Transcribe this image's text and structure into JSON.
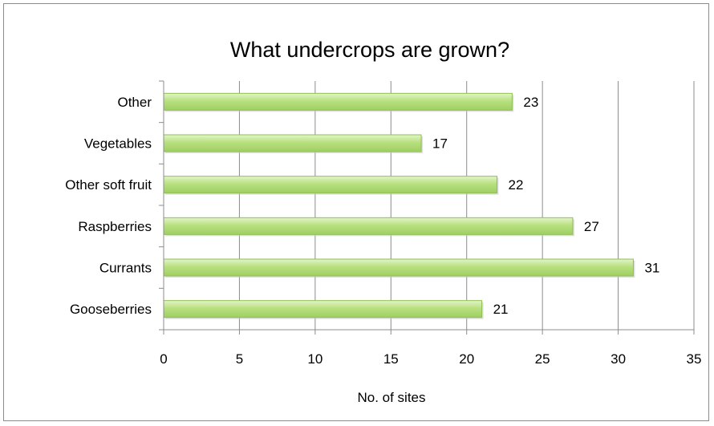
{
  "chart_data": {
    "type": "bar",
    "orientation": "horizontal",
    "title": "What undercrops are grown?",
    "xlabel": "No. of sites",
    "ylabel": "",
    "categories": [
      "Gooseberries",
      "Currants",
      "Raspberries",
      "Other soft fruit",
      "Vegetables",
      "Other"
    ],
    "values": [
      21,
      31,
      27,
      22,
      17,
      23
    ],
    "data_labels": [
      "21",
      "31",
      "27",
      "22",
      "17",
      "23"
    ],
    "xlim": [
      0,
      35
    ],
    "xticks": [
      "0",
      "5",
      "10",
      "15",
      "20",
      "25",
      "30",
      "35"
    ],
    "grid": "vertical",
    "legend": "none",
    "bar_color": "#b3dd7c",
    "bar_edge_color": "#8fbf55"
  }
}
